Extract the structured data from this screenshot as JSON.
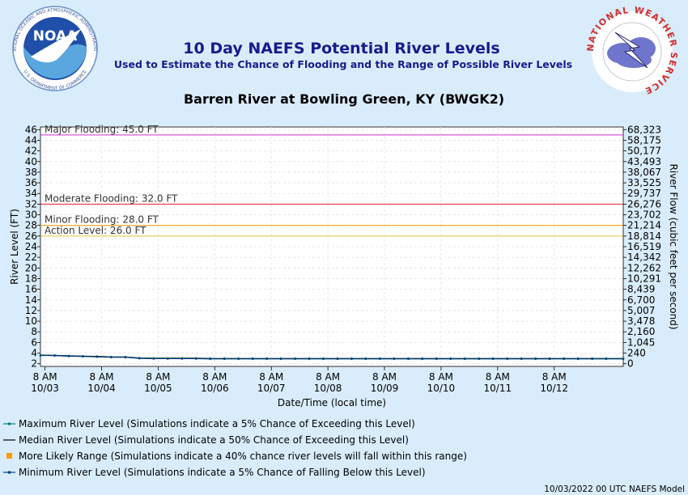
{
  "header": {
    "title": "10 Day NAEFS Potential River Levels",
    "subtitle": "Used to Estimate the Chance of Flooding and the Range of Possible River Levels",
    "station": "Barren River at Bowling Green, KY (BWGK2)",
    "noaa_logo": {
      "center_text": "NOAA",
      "ring_top": "NATIONAL OCEANIC AND ATMOSPHERIC ADMINISTRATION",
      "ring_bottom": "U.S. DEPARTMENT OF COMMERCE"
    },
    "nws_logo": {
      "ring_text": "NATIONAL WEATHER SERVICE"
    }
  },
  "footer": {
    "model_note": "10/03/2022 00 UTC NAEFS Model"
  },
  "legend": [
    {
      "key": "max",
      "label": "Maximum River Level (Simulations indicate a 5% Chance of Exceeding this Level)",
      "color": "#008080"
    },
    {
      "key": "median",
      "label": "Median River Level (Simulations indicate a 50% Chance of Exceeding this Level)",
      "color": "#000000"
    },
    {
      "key": "range",
      "label": "More Likely Range (Simulations indicate a 40% chance river levels will fall within this range)",
      "color": "#ff9900"
    },
    {
      "key": "min",
      "label": "Minimum River Level (Simulations indicate a 5% Chance of Falling Below this Level)",
      "color": "#004080"
    }
  ],
  "chart_data": {
    "type": "line",
    "xlabel": "Date/Time (local time)",
    "ylabel": "River Level (FT)",
    "y2label": "River Flow (cubic feet per second)",
    "ylim": [
      1.5,
      46.5
    ],
    "grid": true,
    "x_ticks": [
      {
        "time": "8 AM",
        "date": "10/03"
      },
      {
        "time": "8 AM",
        "date": "10/04"
      },
      {
        "time": "8 AM",
        "date": "10/05"
      },
      {
        "time": "8 AM",
        "date": "10/06"
      },
      {
        "time": "8 AM",
        "date": "10/07"
      },
      {
        "time": "8 AM",
        "date": "10/08"
      },
      {
        "time": "8 AM",
        "date": "10/09"
      },
      {
        "time": "8 AM",
        "date": "10/10"
      },
      {
        "time": "8 AM",
        "date": "10/11"
      },
      {
        "time": "8 AM",
        "date": "10/12"
      }
    ],
    "y_ticks": [
      2,
      4,
      6,
      8,
      10,
      12,
      14,
      16,
      18,
      20,
      22,
      24,
      26,
      28,
      30,
      32,
      34,
      36,
      38,
      40,
      42,
      44,
      46
    ],
    "flow_ticks": [
      "0",
      "240",
      "1,045",
      "2,160",
      "3,478",
      "5,007",
      "6,700",
      "8,439",
      "10,291",
      "12,262",
      "14,342",
      "16,519",
      "18,814",
      "21,214",
      "23,702",
      "26,276",
      "29,737",
      "33,525",
      "38,067",
      "43,493",
      "50,177",
      "58,175",
      "68,323"
    ],
    "thresholds": [
      {
        "label": "Major Flooding: 45.0 FT",
        "value": 45.0,
        "color": "#cc33cc"
      },
      {
        "label": "Moderate Flooding: 32.0 FT",
        "value": 32.0,
        "color": "#dd2222"
      },
      {
        "label": "Minor Flooding: 28.0 FT",
        "value": 28.0,
        "color": "#ff9900"
      },
      {
        "label": "Action Level: 26.0 FT",
        "value": 26.0,
        "color": "#e8c040"
      }
    ],
    "time_range_days": [
      0,
      10.3
    ],
    "first_tick_day": 0.08,
    "series": [
      {
        "name": "Maximum River Level",
        "key": "max",
        "color": "#008080",
        "x": [
          -0.2,
          0.0,
          0.25,
          0.5,
          0.75,
          1.0,
          1.25,
          1.5,
          1.75,
          2.0,
          2.25,
          2.5,
          2.75,
          3.0,
          3.25,
          3.5,
          3.75,
          4.0,
          4.25,
          4.5,
          4.75,
          5.0,
          5.25,
          5.5,
          5.75,
          6.0,
          6.25,
          6.5,
          6.75,
          7.0,
          7.25,
          7.5,
          7.75,
          8.0,
          8.25,
          8.5,
          8.75,
          9.0,
          9.25,
          9.5,
          9.75,
          10.0,
          10.3
        ],
        "values": [
          3.4,
          3.65,
          3.6,
          3.5,
          3.45,
          3.4,
          3.3,
          3.3,
          3.1,
          3.05,
          3.05,
          3.05,
          3.05,
          3.0,
          3.0,
          3.0,
          3.0,
          3.0,
          3.0,
          3.0,
          3.0,
          3.0,
          3.0,
          3.0,
          3.0,
          3.0,
          3.0,
          3.0,
          3.0,
          3.0,
          3.0,
          3.0,
          3.0,
          3.0,
          3.0,
          3.0,
          3.0,
          3.0,
          3.0,
          3.0,
          3.0,
          3.0,
          3.0
        ]
      },
      {
        "name": "Median River Level",
        "key": "median",
        "color": "#000000",
        "x": [
          -0.2,
          0.0,
          0.25,
          0.5,
          0.75,
          1.0,
          1.25,
          1.5,
          1.75,
          2.0,
          2.25,
          2.5,
          2.75,
          3.0,
          3.25,
          3.5,
          3.75,
          4.0,
          4.25,
          4.5,
          4.75,
          5.0,
          5.25,
          5.5,
          5.75,
          6.0,
          6.25,
          6.5,
          6.75,
          7.0,
          7.25,
          7.5,
          7.75,
          8.0,
          8.25,
          8.5,
          8.75,
          9.0,
          9.25,
          9.5,
          9.75,
          10.0,
          10.3
        ],
        "values": [
          3.35,
          3.6,
          3.55,
          3.45,
          3.4,
          3.35,
          3.25,
          3.25,
          3.05,
          3.0,
          3.0,
          3.0,
          3.0,
          2.95,
          2.95,
          2.95,
          2.95,
          2.95,
          2.95,
          2.95,
          2.95,
          2.95,
          2.95,
          2.95,
          2.95,
          2.95,
          2.95,
          2.95,
          2.95,
          2.95,
          2.95,
          2.95,
          2.95,
          2.95,
          2.95,
          2.95,
          2.95,
          2.95,
          2.95,
          2.95,
          2.95,
          2.95,
          2.95
        ]
      },
      {
        "name": "Minimum River Level",
        "key": "min",
        "color": "#004080",
        "x": [
          -0.2,
          0.0,
          0.25,
          0.5,
          0.75,
          1.0,
          1.25,
          1.5,
          1.75,
          2.0,
          2.25,
          2.5,
          2.75,
          3.0,
          3.25,
          3.5,
          3.75,
          4.0,
          4.25,
          4.5,
          4.75,
          5.0,
          5.25,
          5.5,
          5.75,
          6.0,
          6.25,
          6.5,
          6.75,
          7.0,
          7.25,
          7.5,
          7.75,
          8.0,
          8.25,
          8.5,
          8.75,
          9.0,
          9.25,
          9.5,
          9.75,
          10.0,
          10.3
        ],
        "values": [
          3.3,
          3.55,
          3.5,
          3.4,
          3.35,
          3.3,
          3.2,
          3.2,
          3.0,
          2.95,
          2.95,
          2.95,
          2.95,
          2.9,
          2.9,
          2.9,
          2.9,
          2.9,
          2.9,
          2.9,
          2.9,
          2.9,
          2.9,
          2.9,
          2.9,
          2.9,
          2.9,
          2.9,
          2.9,
          2.9,
          2.9,
          2.9,
          2.9,
          2.9,
          2.9,
          2.9,
          2.9,
          2.9,
          2.9,
          2.9,
          2.9,
          2.9,
          2.9
        ]
      }
    ]
  }
}
